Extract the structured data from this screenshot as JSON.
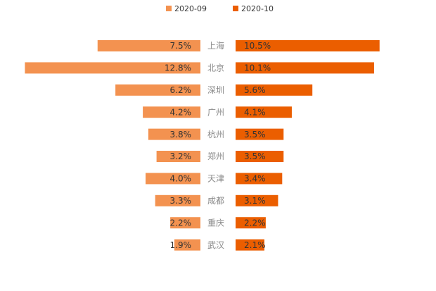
{
  "chart_data": {
    "type": "bar",
    "orientation": "butterfly",
    "categories": [
      "上海",
      "北京",
      "深圳",
      "广州",
      "杭州",
      "郑州",
      "天津",
      "成都",
      "重庆",
      "武汉"
    ],
    "series": [
      {
        "name": "2020-09",
        "color": "#f39250",
        "values": [
          7.5,
          12.8,
          6.2,
          4.2,
          3.8,
          3.2,
          4.0,
          3.3,
          2.2,
          1.9
        ],
        "labels": [
          "7.5%",
          "12.8%",
          "6.2%",
          "4.2%",
          "3.8%",
          "3.2%",
          "4.0%",
          "3.3%",
          "2.2%",
          "1.9%"
        ]
      },
      {
        "name": "2020-10",
        "color": "#eb5e00",
        "values": [
          10.5,
          10.1,
          5.6,
          4.1,
          3.5,
          3.5,
          3.4,
          3.1,
          2.2,
          2.1
        ],
        "labels": [
          "10.5%",
          "10.1%",
          "5.6%",
          "4.1%",
          "3.5%",
          "3.5%",
          "3.4%",
          "3.1%",
          "2.2%",
          "2.1%"
        ]
      }
    ],
    "legend": "top-center",
    "grid": false
  }
}
